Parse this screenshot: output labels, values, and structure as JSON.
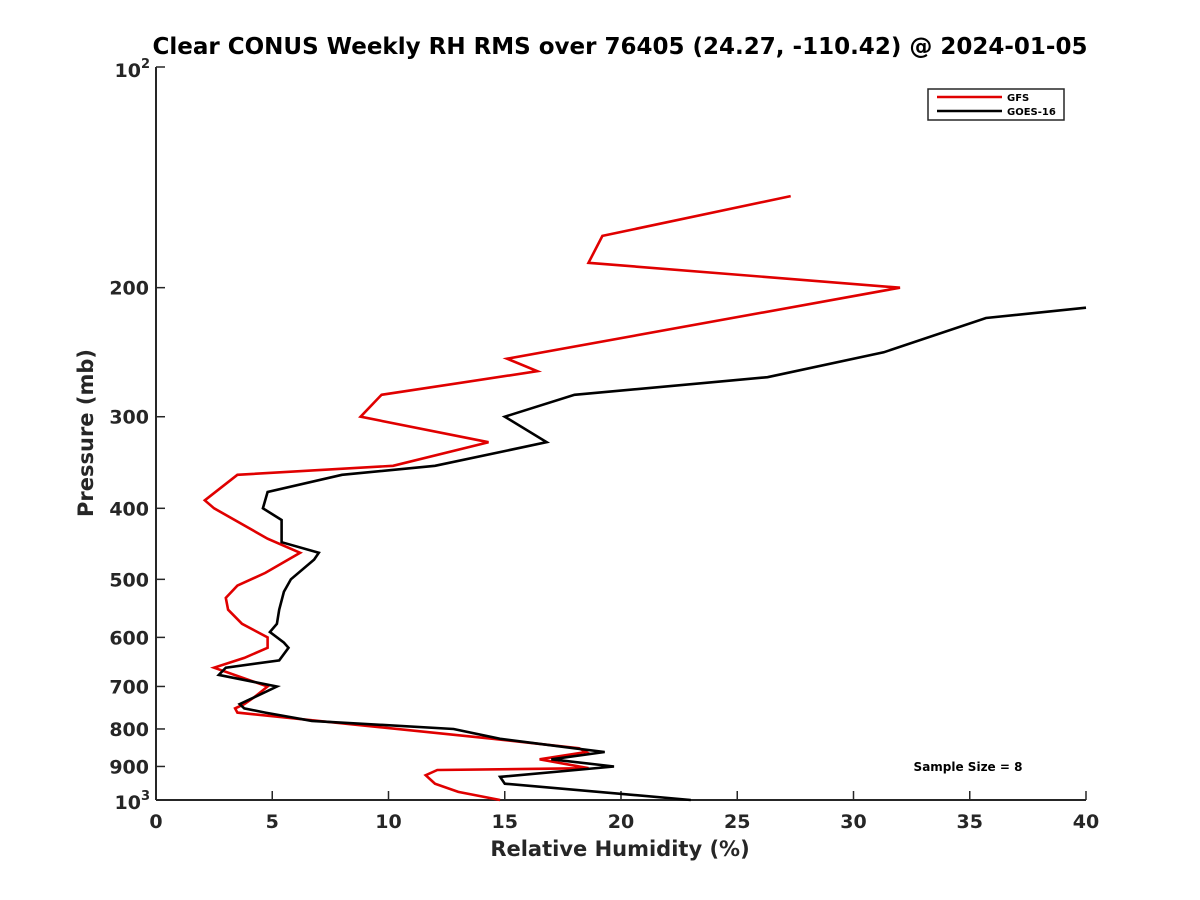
{
  "chart_data": {
    "type": "line",
    "title": "Clear CONUS Weekly RH RMS over 76405 (24.27, -110.42) @ 2024-01-05",
    "xlabel": "Relative Humidity (%)",
    "ylabel": "Pressure (mb)",
    "xlim": [
      0,
      40
    ],
    "ylim": [
      1000,
      100
    ],
    "yscale": "log",
    "xticks": [
      0,
      5,
      10,
      15,
      20,
      25,
      30,
      35,
      40
    ],
    "xtick_labels": [
      "0",
      "5",
      "10",
      "15",
      "20",
      "25",
      "30",
      "35",
      "40"
    ],
    "yticks": [
      900,
      800,
      700,
      600,
      500,
      400,
      300,
      200
    ],
    "ytick_labels": [
      "900",
      "800",
      "700",
      "600",
      "500",
      "400",
      "300",
      "200"
    ],
    "yaxis_exp_base": "10",
    "yaxis_top_exp": "2",
    "yaxis_bottom_exp": "3",
    "legend_position": "top-right",
    "annotation": "Sample Size = 8",
    "series": [
      {
        "name": "GFS",
        "color": "#e00000",
        "points": [
          [
            14.8,
            1000
          ],
          [
            13,
            975
          ],
          [
            12,
            950
          ],
          [
            11.6,
            925
          ],
          [
            12.1,
            910
          ],
          [
            18.6,
            905
          ],
          [
            16.5,
            880
          ],
          [
            18.5,
            860
          ],
          [
            18.2,
            850
          ],
          [
            14.5,
            825
          ],
          [
            3.5,
            760
          ],
          [
            3.4,
            750
          ],
          [
            3.8,
            740
          ],
          [
            4.2,
            725
          ],
          [
            4.8,
            700
          ],
          [
            2.5,
            660
          ],
          [
            3.8,
            640
          ],
          [
            4.8,
            620
          ],
          [
            4.8,
            600
          ],
          [
            3.7,
            575
          ],
          [
            3.1,
            550
          ],
          [
            3.0,
            530
          ],
          [
            3.5,
            510
          ],
          [
            4.7,
            490
          ],
          [
            6.2,
            460
          ],
          [
            4.8,
            440
          ],
          [
            2.5,
            400
          ],
          [
            2.1,
            390
          ],
          [
            3.5,
            360
          ],
          [
            10.2,
            350
          ],
          [
            14.3,
            325
          ],
          [
            8.8,
            300
          ],
          [
            9.7,
            280
          ],
          [
            16.4,
            260
          ],
          [
            15.1,
            250
          ],
          [
            32.0,
            200
          ],
          [
            18.6,
            185
          ],
          [
            19.2,
            170
          ],
          [
            27.3,
            150
          ]
        ]
      },
      {
        "name": "GOES-16",
        "color": "#000000",
        "points": [
          [
            23.0,
            1000
          ],
          [
            15.0,
            950
          ],
          [
            14.8,
            930
          ],
          [
            19.7,
            900
          ],
          [
            17.0,
            880
          ],
          [
            19.3,
            860
          ],
          [
            18.0,
            850
          ],
          [
            14.8,
            825
          ],
          [
            12.8,
            800
          ],
          [
            6.7,
            780
          ],
          [
            4.7,
            760
          ],
          [
            3.8,
            750
          ],
          [
            3.6,
            740
          ],
          [
            4.2,
            725
          ],
          [
            5.2,
            700
          ],
          [
            2.7,
            675
          ],
          [
            3.0,
            660
          ],
          [
            5.3,
            645
          ],
          [
            5.7,
            620
          ],
          [
            5.5,
            610
          ],
          [
            4.9,
            590
          ],
          [
            5.2,
            575
          ],
          [
            5.3,
            550
          ],
          [
            5.5,
            520
          ],
          [
            5.8,
            500
          ],
          [
            6.8,
            470
          ],
          [
            7.0,
            460
          ],
          [
            5.4,
            445
          ],
          [
            5.4,
            415
          ],
          [
            4.6,
            400
          ],
          [
            4.8,
            380
          ],
          [
            8.0,
            360
          ],
          [
            12.0,
            350
          ],
          [
            16.8,
            325
          ],
          [
            15.0,
            300
          ],
          [
            18.0,
            280
          ],
          [
            26.3,
            265
          ],
          [
            31.3,
            245
          ],
          [
            35.7,
            220
          ],
          [
            40.0,
            213
          ]
        ]
      }
    ]
  }
}
